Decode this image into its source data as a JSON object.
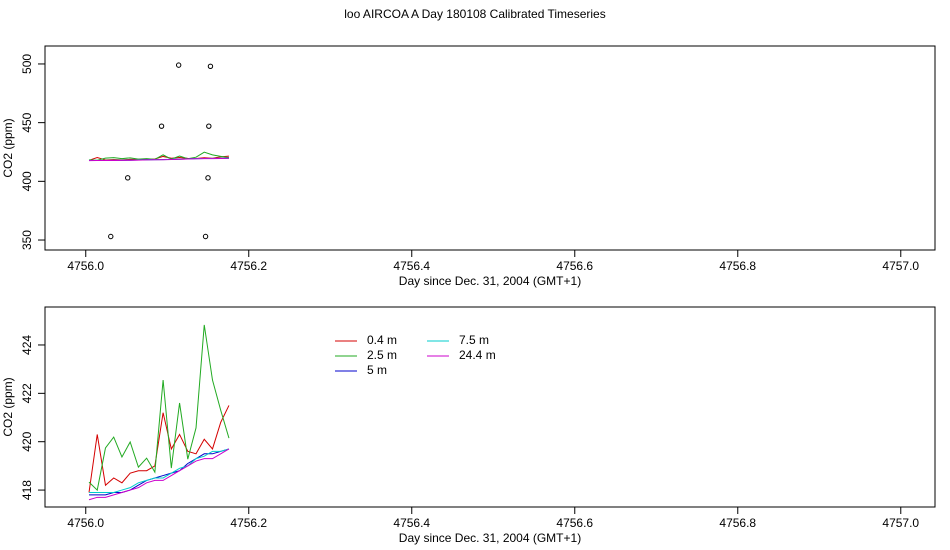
{
  "title": "loo AIRCOA A  Day 180108  Calibrated Timeseries",
  "chart_data": [
    {
      "type": "line",
      "xlabel": "Day since Dec. 31, 2004 (GMT+1)",
      "ylabel": "CO2 (ppm)",
      "xlim": [
        4755.95,
        4757.042
      ],
      "ylim": [
        341.5,
        515.3
      ],
      "xticks": [
        {
          "value": 4756,
          "label": "4756.0"
        },
        4756.2,
        4756.4,
        4756.6,
        4756.8,
        {
          "value": 4757,
          "label": "4757.0"
        }
      ],
      "yticks": [
        350,
        400,
        450,
        500
      ],
      "x": [
        4756.004,
        4756.0141,
        4756.0242,
        4756.0343,
        4756.0444,
        4756.0545,
        4756.0646,
        4756.0747,
        4756.0848,
        4756.0949,
        4756.105,
        4756.1151,
        4756.1252,
        4756.1353,
        4756.1454,
        4756.1555,
        4756.1656,
        4756.1757
      ],
      "series": [
        {
          "name": "0.4 m",
          "color": "#d40000",
          "values": [
            417.9,
            420.3,
            418.2,
            418.5,
            418.3,
            418.7,
            418.8,
            418.8,
            419.0,
            421.2,
            419.7,
            420.3,
            419.6,
            419.5,
            420.1,
            419.7,
            420.8,
            421.5
          ]
        },
        {
          "name": "2.5 m",
          "color": "#22aa22",
          "values": [
            418.33,
            418.0,
            419.74,
            420.19,
            419.37,
            419.99,
            418.95,
            419.32,
            418.74,
            422.55,
            418.91,
            421.6,
            419.28,
            420.57,
            424.83,
            422.55,
            421.3,
            420.15
          ]
        },
        {
          "name": "5 m",
          "color": "#0000cc",
          "values": [
            417.8,
            417.8,
            417.8,
            417.9,
            417.9,
            418.0,
            418.2,
            418.4,
            418.5,
            418.6,
            418.7,
            418.8,
            419.1,
            419.3,
            419.5,
            419.5,
            419.6,
            419.7
          ]
        },
        {
          "name": "7.5 m",
          "color": "#00cccc",
          "values": [
            417.9,
            417.9,
            417.9,
            417.9,
            418.0,
            418.1,
            418.3,
            418.4,
            418.5,
            418.5,
            418.7,
            418.9,
            419.0,
            419.3,
            419.4,
            419.6,
            419.6,
            419.7
          ]
        },
        {
          "name": "24.4 m",
          "color": "#cc00cc",
          "values": [
            417.6,
            417.7,
            417.7,
            417.8,
            417.9,
            418.0,
            418.1,
            418.3,
            418.4,
            418.4,
            418.6,
            418.8,
            419.0,
            419.2,
            419.3,
            419.3,
            419.5,
            419.7
          ]
        }
      ],
      "points": {
        "x": [
          4756.0307,
          4756.114,
          4756.153,
          4756.093,
          4756.151,
          4756.0515,
          4756.15,
          4756.147
        ],
        "y": [
          353,
          499,
          498,
          447,
          447,
          403,
          403,
          353
        ]
      }
    },
    {
      "type": "line",
      "xlabel": "Day since Dec. 31, 2004 (GMT+1)",
      "ylabel": "CO2 (ppm)",
      "xlim": [
        4755.95,
        4757.042
      ],
      "ylim": [
        417.3,
        425.57
      ],
      "xticks": [
        {
          "value": 4756,
          "label": "4756.0"
        },
        4756.2,
        4756.4,
        4756.6,
        4756.8,
        {
          "value": 4757,
          "label": "4757.0"
        }
      ],
      "yticks": [
        418,
        420,
        422,
        424
      ],
      "legend": "top-left",
      "x": [
        4756.004,
        4756.0141,
        4756.0242,
        4756.0343,
        4756.0444,
        4756.0545,
        4756.0646,
        4756.0747,
        4756.0848,
        4756.0949,
        4756.105,
        4756.1151,
        4756.1252,
        4756.1353,
        4756.1454,
        4756.1555,
        4756.1656,
        4756.1757
      ],
      "series": [
        {
          "name": "0.4 m",
          "color": "#d40000",
          "values": [
            417.9,
            420.3,
            418.2,
            418.5,
            418.3,
            418.7,
            418.8,
            418.8,
            419.0,
            421.2,
            419.7,
            420.3,
            419.6,
            419.5,
            420.1,
            419.7,
            420.8,
            421.5
          ]
        },
        {
          "name": "2.5 m",
          "color": "#22aa22",
          "values": [
            418.33,
            418.0,
            419.74,
            420.19,
            419.37,
            419.99,
            418.95,
            419.32,
            418.74,
            422.55,
            418.91,
            421.6,
            419.28,
            420.57,
            424.83,
            422.55,
            421.3,
            420.15
          ]
        },
        {
          "name": "5 m",
          "color": "#0000cc",
          "values": [
            417.8,
            417.8,
            417.8,
            417.9,
            417.9,
            418.0,
            418.2,
            418.4,
            418.5,
            418.6,
            418.7,
            418.8,
            419.1,
            419.3,
            419.5,
            419.5,
            419.6,
            419.7
          ]
        },
        {
          "name": "7.5 m",
          "color": "#00cccc",
          "values": [
            417.9,
            417.9,
            417.9,
            417.9,
            418.0,
            418.1,
            418.3,
            418.4,
            418.5,
            418.5,
            418.7,
            418.9,
            419.0,
            419.3,
            419.4,
            419.6,
            419.6,
            419.7
          ]
        },
        {
          "name": "24.4 m",
          "color": "#cc00cc",
          "values": [
            417.6,
            417.7,
            417.7,
            417.8,
            417.9,
            418.0,
            418.1,
            418.3,
            418.4,
            418.4,
            418.6,
            418.8,
            419.0,
            419.2,
            419.3,
            419.3,
            419.5,
            419.7
          ]
        }
      ]
    }
  ]
}
